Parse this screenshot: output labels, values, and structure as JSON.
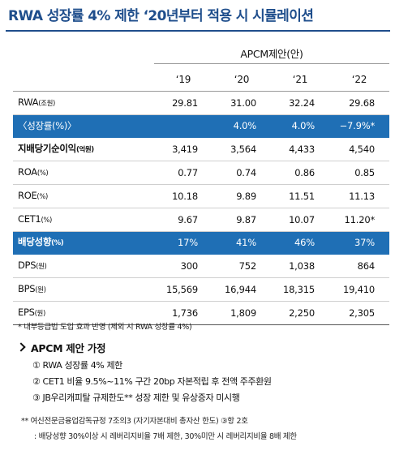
{
  "title": "RWA 성장률 4% 제한 ‘20년부터 적용 시 시뮬레이션",
  "group_header": "APCM제안(안)",
  "years": [
    "‘19",
    "‘20",
    "‘21",
    "‘22"
  ],
  "rows": [
    {
      "label": "RWA",
      "unit": "(조원)",
      "values": [
        "29.81",
        "31.00",
        "32.24",
        "29.68"
      ]
    },
    {
      "label": "〈성장률(%)〉",
      "unit": "",
      "values": [
        "",
        "4.0%",
        "4.0%",
        "−7.9%*"
      ]
    },
    {
      "label": "지배당기순이익",
      "unit": "(억원)",
      "values": [
        "3,419",
        "3,564",
        "4,433",
        "4,540"
      ]
    },
    {
      "label": "ROA",
      "unit": "(%)",
      "values": [
        "0.77",
        "0.74",
        "0.86",
        "0.85"
      ]
    },
    {
      "label": "ROE",
      "unit": "(%)",
      "values": [
        "10.18",
        "9.89",
        "11.51",
        "11.13"
      ]
    },
    {
      "label": "CET1",
      "unit": "(%)",
      "values": [
        "9.67",
        "9.87",
        "10.07",
        "11.20*"
      ]
    },
    {
      "label": "배당성향",
      "unit": "(%)",
      "values": [
        "17%",
        "41%",
        "46%",
        "37%"
      ]
    },
    {
      "label": "DPS",
      "unit": "(원)",
      "values": [
        "300",
        "752",
        "1,038",
        "864"
      ]
    },
    {
      "label": "BPS",
      "unit": "(원)",
      "values": [
        "15,569",
        "16,944",
        "18,315",
        "19,410"
      ]
    },
    {
      "label": "EPS",
      "unit": "(원)",
      "values": [
        "1,736",
        "1,809",
        "2,250",
        "2,305"
      ]
    }
  ],
  "note": "* 내부등급법 도입 효과 반영 (제외 시 RWA 성장률 4%)",
  "section_title": "APCM 제안 가정",
  "assumptions": [
    "① RWA 성장률 4% 제한",
    "② CET1 비율 9.5%~11% 구간 20bp 자본적립 후 전액 주주환원",
    "③ JB우리캐피탈 규제한도** 성장 제한 및 유상증자 미시행"
  ],
  "footnote_line1": "**  여신전문금융업감독규정 7조의3 (자기자본대비 총자산 한도) ③항 2호",
  "footnote_line2": ": 배당성향 30%이상 시 레버리지비율 7배 제한, 30%미만 시 레버리지비율 8배 제한",
  "colors": {
    "title": "#1f4e8c",
    "highlight_row": "#1f6fb5"
  }
}
